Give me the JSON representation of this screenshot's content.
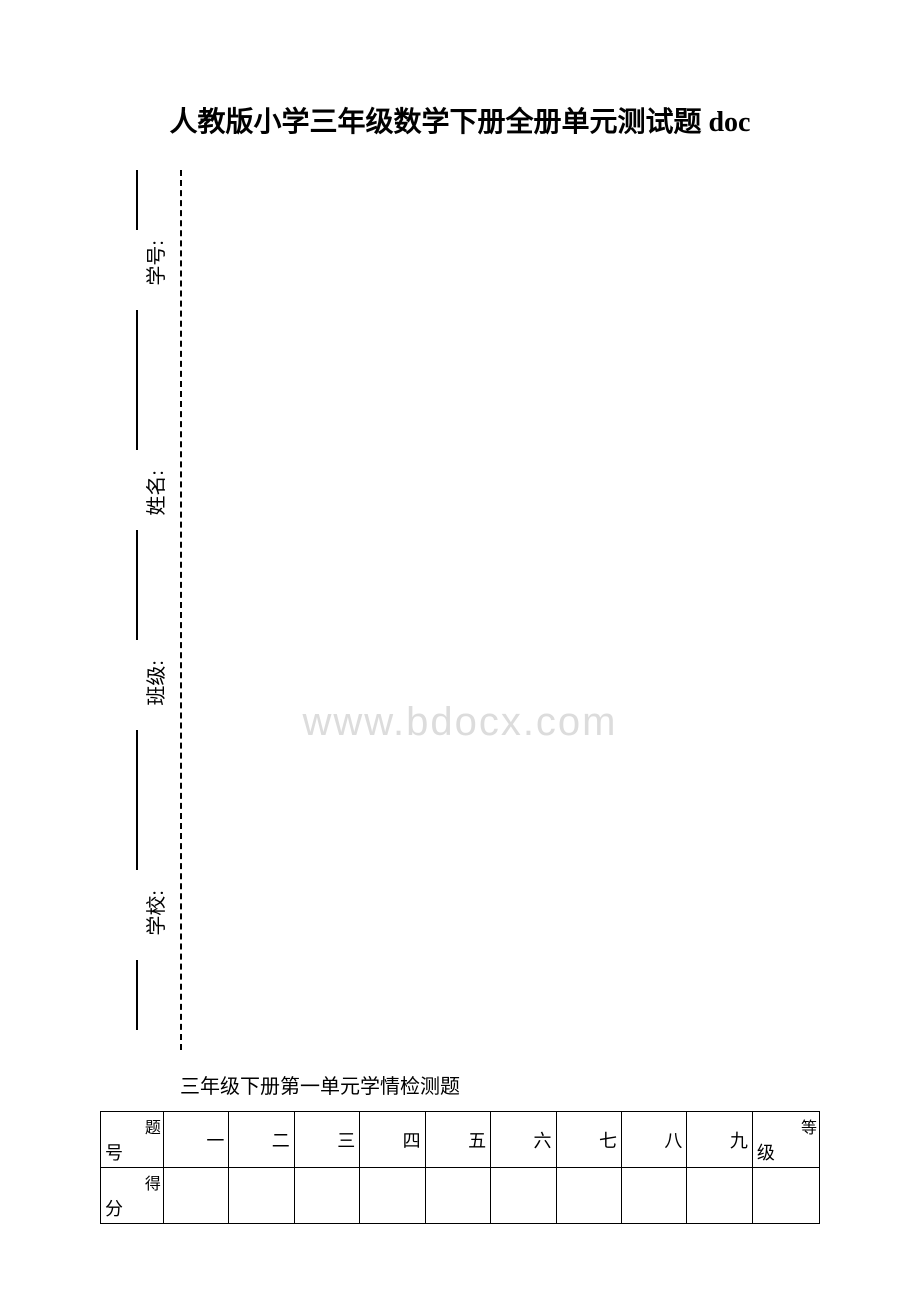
{
  "title": "人教版小学三年级数学下册全册单元测试题 doc",
  "binding": {
    "labels": [
      "学号:",
      "姓名:",
      "班级:",
      "学校:"
    ]
  },
  "watermark": "www.bdocx.com",
  "subtitle": "三年级下册第一单元学情检测题",
  "score_table": {
    "row1_head_top": "题",
    "row1_head_bottom": "号",
    "row1_cols": [
      "一",
      "二",
      "三",
      "四",
      "五",
      "六",
      "七",
      "八",
      "九"
    ],
    "row1_last_top": "等",
    "row1_last_bottom": "级",
    "row2_head_top": "得",
    "row2_head_bottom": "分"
  },
  "colors": {
    "text": "#000000",
    "watermark": "#dcdcdc",
    "background": "#ffffff",
    "border": "#000000"
  }
}
